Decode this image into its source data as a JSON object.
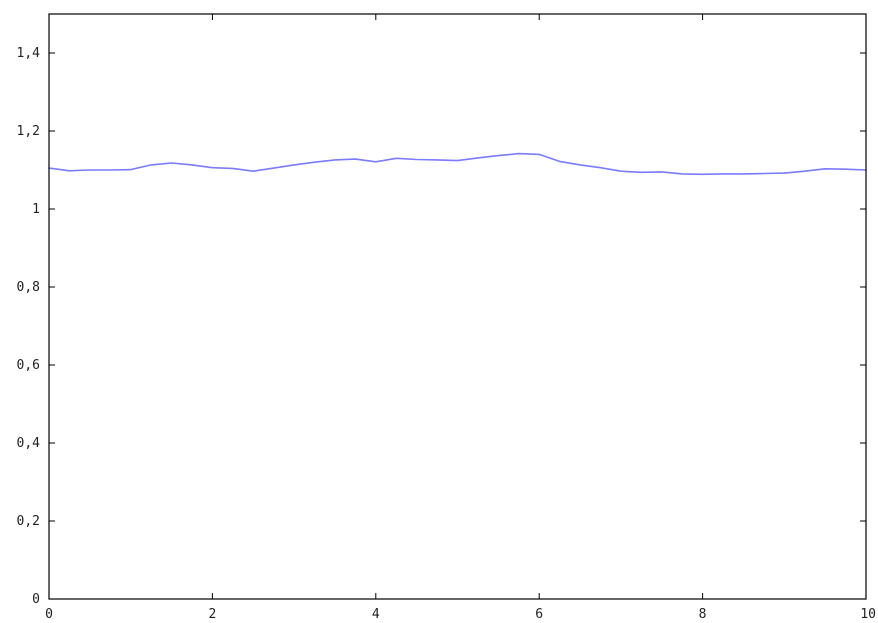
{
  "chart_data": {
    "type": "line",
    "title": "",
    "xlabel": "",
    "ylabel": "",
    "xlim": [
      0,
      10
    ],
    "ylim": [
      0,
      1.5
    ],
    "x_ticks": [
      0,
      2,
      4,
      6,
      8,
      10
    ],
    "x_tick_labels": [
      "0",
      "2",
      "4",
      "6",
      "8",
      "10"
    ],
    "y_ticks": [
      0,
      0.2,
      0.4,
      0.6,
      0.8,
      1,
      1.2,
      1.4
    ],
    "y_tick_labels": [
      "0",
      "0,2",
      "0,4",
      "0,6",
      "0,8",
      "1",
      "1,2",
      "1,4"
    ],
    "grid": false,
    "legend": "none",
    "series": [
      {
        "color": "#7b7bff",
        "x": [
          0,
          0.25,
          0.5,
          0.75,
          1,
          1.25,
          1.5,
          1.75,
          2,
          2.25,
          2.5,
          2.75,
          3,
          3.25,
          3.5,
          3.75,
          4,
          4.25,
          4.5,
          4.75,
          5,
          5.25,
          5.5,
          5.75,
          6,
          6.25,
          6.5,
          6.75,
          7,
          7.25,
          7.5,
          7.75,
          8,
          8.25,
          8.5,
          8.75,
          9,
          9.25,
          9.5,
          9.75,
          10
        ],
        "values": [
          1.105,
          1.098,
          1.1,
          1.1,
          1.101,
          1.113,
          1.118,
          1.113,
          1.106,
          1.104,
          1.097,
          1.105,
          1.113,
          1.12,
          1.126,
          1.128,
          1.121,
          1.13,
          1.127,
          1.126,
          1.124,
          1.131,
          1.137,
          1.142,
          1.14,
          1.122,
          1.113,
          1.106,
          1.097,
          1.094,
          1.095,
          1.09,
          1.089,
          1.09,
          1.09,
          1.091,
          1.092,
          1.097,
          1.103,
          1.102,
          1.1
        ]
      }
    ]
  }
}
